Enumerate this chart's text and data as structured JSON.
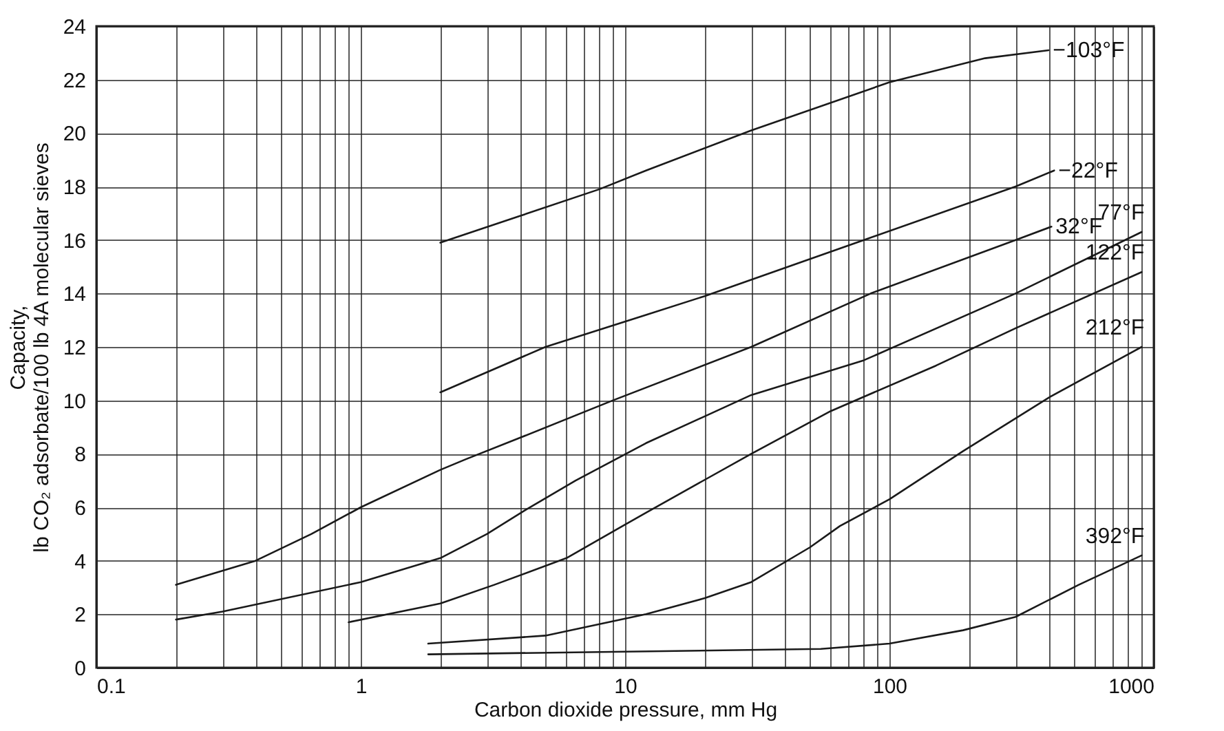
{
  "chart_data": {
    "type": "line",
    "xlabel": "Carbon dioxide pressure, mm Hg",
    "ylabel": "Capacity,\nlb CO₂ adsorbate/100 lb 4A molecular sieves",
    "log": "x",
    "grid": true,
    "legend": false,
    "marker": "none",
    "line_style": "solid",
    "xlim": [
      0.1,
      1000
    ],
    "ylim": [
      0,
      24
    ],
    "xticks": [
      0.1,
      {
        "value": 0.2,
        "label": null
      },
      {
        "value": 0.3,
        "label": null
      },
      {
        "value": 0.4,
        "label": null
      },
      {
        "value": 0.5,
        "label": null
      },
      {
        "value": 0.6,
        "label": null
      },
      {
        "value": 0.7,
        "label": null
      },
      {
        "value": 0.8,
        "label": null
      },
      {
        "value": 0.9,
        "label": null
      },
      1,
      {
        "value": 2,
        "label": null
      },
      {
        "value": 3,
        "label": null
      },
      {
        "value": 4,
        "label": null
      },
      {
        "value": 5,
        "label": null
      },
      {
        "value": 6,
        "label": null
      },
      {
        "value": 7,
        "label": null
      },
      {
        "value": 8,
        "label": null
      },
      {
        "value": 9,
        "label": null
      },
      10,
      {
        "value": 20,
        "label": null
      },
      {
        "value": 30,
        "label": null
      },
      {
        "value": 40,
        "label": null
      },
      {
        "value": 50,
        "label": null
      },
      {
        "value": 60,
        "label": null
      },
      {
        "value": 70,
        "label": null
      },
      {
        "value": 80,
        "label": null
      },
      {
        "value": 90,
        "label": null
      },
      100,
      {
        "value": 200,
        "label": null
      },
      {
        "value": 300,
        "label": null
      },
      {
        "value": 400,
        "label": null
      },
      {
        "value": 500,
        "label": null
      },
      {
        "value": 600,
        "label": null
      },
      {
        "value": 700,
        "label": null
      },
      {
        "value": 800,
        "label": null
      },
      {
        "value": 900,
        "label": null
      },
      1000
    ],
    "yticks": [
      0,
      2,
      4,
      6,
      8,
      10,
      12,
      14,
      16,
      18,
      20,
      22,
      24
    ],
    "series": [
      {
        "name": "−103°F",
        "color": "#1a1a1a",
        "x": [
          2,
          4,
          8,
          12,
          30,
          100,
          230,
          400
        ],
        "values": [
          15.9,
          16.9,
          17.9,
          18.6,
          20.1,
          21.9,
          22.8,
          23.1
        ]
      },
      {
        "name": "−22°F",
        "color": "#1a1a1a",
        "x": [
          2,
          5,
          12,
          20,
          80,
          300,
          420
        ],
        "values": [
          10.3,
          12.0,
          13.2,
          13.9,
          16.0,
          18.0,
          18.6
        ]
      },
      {
        "name": "32°F",
        "color": "#1a1a1a",
        "x": [
          0.2,
          0.4,
          0.65,
          1,
          2,
          2.5,
          4,
          9,
          30,
          85,
          300,
          410
        ],
        "values": [
          3.1,
          4.0,
          5.0,
          6.0,
          7.4,
          7.8,
          8.6,
          10.0,
          12.0,
          14.0,
          16.0,
          16.5
        ]
      },
      {
        "name": "77°F",
        "color": "#1a1a1a",
        "x": [
          0.2,
          0.3,
          1,
          2,
          3,
          4.2,
          6.5,
          12,
          30,
          80,
          300,
          900
        ],
        "values": [
          1.8,
          2.1,
          3.2,
          4.1,
          5.0,
          5.9,
          7.0,
          8.4,
          10.2,
          11.5,
          14.0,
          16.3
        ]
      },
      {
        "name": "122°F",
        "color": "#1a1a1a",
        "x": [
          0.9,
          2,
          3.2,
          6,
          12,
          30,
          60,
          150,
          300,
          900
        ],
        "values": [
          1.7,
          2.4,
          3.1,
          4.1,
          5.8,
          8.0,
          9.6,
          11.3,
          12.7,
          14.8
        ]
      },
      {
        "name": "212°F",
        "color": "#1a1a1a",
        "x": [
          1.8,
          5,
          12,
          20,
          30,
          50,
          65,
          100,
          190,
          400,
          900
        ],
        "values": [
          0.9,
          1.2,
          2.0,
          2.6,
          3.2,
          4.5,
          5.3,
          6.3,
          8.1,
          10.1,
          12.0
        ]
      },
      {
        "name": "392°F",
        "color": "#1a1a1a",
        "x": [
          1.8,
          10,
          55,
          100,
          190,
          300,
          520,
          900
        ],
        "values": [
          0.5,
          0.6,
          0.7,
          0.9,
          1.4,
          1.9,
          3.1,
          4.2
        ]
      }
    ]
  }
}
